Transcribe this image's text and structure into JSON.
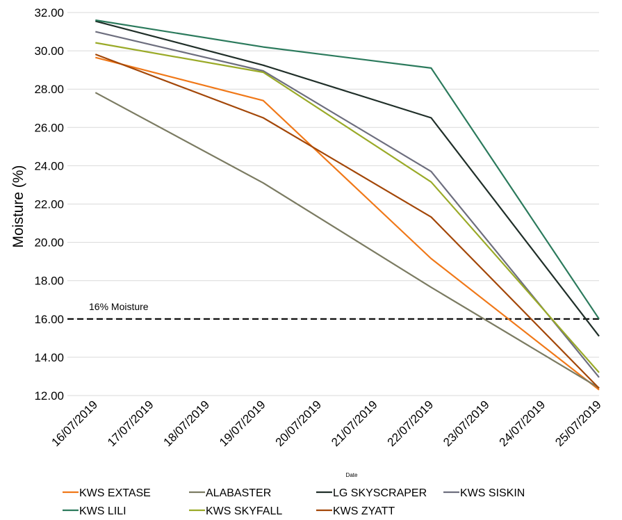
{
  "chart_data": {
    "type": "line",
    "title": "",
    "xlabel": "Date",
    "ylabel": "Moisture (%)",
    "ylim": [
      12,
      32
    ],
    "y_ticks": [
      "12.00",
      "14.00",
      "16.00",
      "18.00",
      "20.00",
      "22.00",
      "24.00",
      "26.00",
      "28.00",
      "30.00",
      "32.00"
    ],
    "categories": [
      "16/07/2019",
      "17/07/2019",
      "18/07/2019",
      "19/07/2019",
      "20/07/2019",
      "21/07/2019",
      "22/07/2019",
      "23/07/2019",
      "24/07/2019",
      "25/07/2019"
    ],
    "grid": "horizontal",
    "legend_position": "bottom",
    "reference_line": {
      "value": 16,
      "label": "16% Moisture",
      "style": "dashed",
      "color": "#000000"
    },
    "series": [
      {
        "name": "KWS EXTASE",
        "color": "#F07818",
        "points": [
          [
            "16/07/2019",
            29.65
          ],
          [
            "19/07/2019",
            27.4
          ],
          [
            "22/07/2019",
            19.15
          ],
          [
            "25/07/2019",
            12.3
          ]
        ]
      },
      {
        "name": "ALABASTER",
        "color": "#7B7B62",
        "points": [
          [
            "16/07/2019",
            27.82
          ],
          [
            "19/07/2019",
            23.1
          ],
          [
            "22/07/2019",
            17.65
          ],
          [
            "25/07/2019",
            12.4
          ]
        ]
      },
      {
        "name": "LG SKYSCRAPER",
        "color": "#1F2E28",
        "points": [
          [
            "16/07/2019",
            31.55
          ],
          [
            "19/07/2019",
            29.25
          ],
          [
            "22/07/2019",
            26.5
          ],
          [
            "25/07/2019",
            15.1
          ]
        ]
      },
      {
        "name": "KWS SISKIN",
        "color": "#6D6E7E",
        "points": [
          [
            "16/07/2019",
            31.0
          ],
          [
            "19/07/2019",
            28.95
          ],
          [
            "22/07/2019",
            23.7
          ],
          [
            "25/07/2019",
            12.95
          ]
        ]
      },
      {
        "name": "KWS LILI",
        "color": "#2B7A5C",
        "points": [
          [
            "16/07/2019",
            31.6
          ],
          [
            "19/07/2019",
            30.2
          ],
          [
            "22/07/2019",
            29.1
          ],
          [
            "25/07/2019",
            16.0
          ]
        ]
      },
      {
        "name": "KWS SKYFALL",
        "color": "#9AAA28",
        "points": [
          [
            "16/07/2019",
            30.42
          ],
          [
            "19/07/2019",
            28.88
          ],
          [
            "22/07/2019",
            23.15
          ],
          [
            "25/07/2019",
            13.2
          ]
        ]
      },
      {
        "name": "KWS ZYATT",
        "color": "#A34708",
        "points": [
          [
            "16/07/2019",
            29.82
          ],
          [
            "19/07/2019",
            26.5
          ],
          [
            "22/07/2019",
            21.32
          ],
          [
            "25/07/2019",
            12.38
          ]
        ]
      }
    ]
  }
}
